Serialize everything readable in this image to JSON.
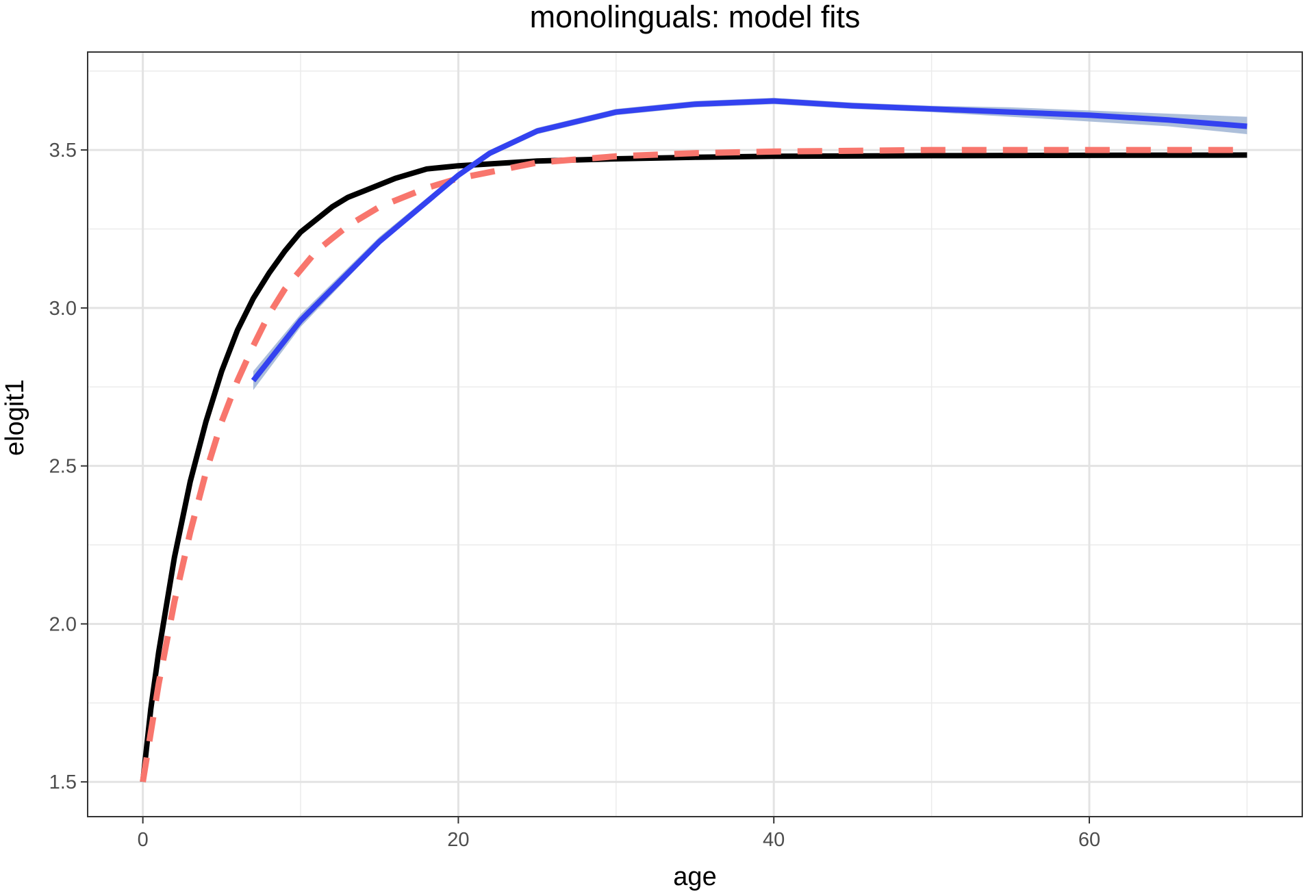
{
  "chart_data": {
    "type": "line",
    "title": "monolinguals: model fits",
    "xlabel": "age",
    "ylabel": "elogit1",
    "xlim": [
      -3.5,
      73.5
    ],
    "ylim": [
      1.39,
      3.81
    ],
    "x_ticks": [
      0,
      20,
      40,
      60
    ],
    "x_tick_labels": [
      "0",
      "20",
      "40",
      "60"
    ],
    "x_minor_ticks": [
      10,
      30,
      50,
      70
    ],
    "y_ticks": [
      1.5,
      2.0,
      2.5,
      3.0,
      3.5
    ],
    "y_tick_labels": [
      "1.5",
      "2.0",
      "2.5",
      "3.0",
      "3.5"
    ],
    "y_minor_ticks": [
      1.75,
      2.25,
      2.75,
      3.25,
      3.75
    ],
    "grid": true,
    "legend": "none",
    "series": [
      {
        "style": "solid",
        "color": "#000000",
        "x": [
          0,
          0.5,
          1,
          2,
          3,
          4,
          5,
          6,
          7,
          8,
          9,
          10,
          11,
          12,
          13,
          14,
          15,
          16,
          17,
          18,
          19,
          20,
          25,
          30,
          35,
          40,
          50,
          60,
          70
        ],
        "y": [
          1.5,
          1.73,
          1.91,
          2.21,
          2.45,
          2.64,
          2.8,
          2.93,
          3.03,
          3.11,
          3.18,
          3.24,
          3.28,
          3.32,
          3.35,
          3.37,
          3.39,
          3.41,
          3.425,
          3.44,
          3.445,
          3.45,
          3.465,
          3.472,
          3.477,
          3.48,
          3.482,
          3.483,
          3.484
        ]
      },
      {
        "style": "dashed",
        "color": "#f8766d",
        "x": [
          0,
          1,
          2,
          3,
          4,
          5,
          6,
          7,
          8,
          9,
          10,
          11,
          12,
          13,
          14,
          15,
          16,
          17,
          18,
          20,
          22,
          25,
          30,
          35,
          40,
          50,
          60,
          70
        ],
        "y": [
          1.5,
          1.81,
          2.07,
          2.29,
          2.48,
          2.64,
          2.77,
          2.88,
          2.98,
          3.06,
          3.12,
          3.18,
          3.22,
          3.26,
          3.29,
          3.32,
          3.34,
          3.36,
          3.38,
          3.41,
          3.43,
          3.46,
          3.48,
          3.49,
          3.495,
          3.5,
          3.5,
          3.5
        ]
      },
      {
        "style": "smooth",
        "color": "#3342f0",
        "band_color": "#9fb4d4",
        "x": [
          7,
          10,
          15,
          20,
          22,
          25,
          30,
          35,
          40,
          45,
          50,
          55,
          60,
          65,
          70
        ],
        "y": [
          2.77,
          2.96,
          3.21,
          3.42,
          3.49,
          3.56,
          3.62,
          3.645,
          3.655,
          3.64,
          3.63,
          3.62,
          3.61,
          3.595,
          3.575
        ],
        "lower": [
          2.74,
          2.94,
          3.2,
          3.41,
          3.48,
          3.55,
          3.61,
          3.635,
          3.645,
          3.63,
          3.62,
          3.605,
          3.59,
          3.575,
          3.55
        ],
        "upper": [
          2.8,
          2.98,
          3.225,
          3.43,
          3.5,
          3.57,
          3.63,
          3.655,
          3.665,
          3.65,
          3.64,
          3.635,
          3.625,
          3.615,
          3.605
        ]
      }
    ]
  }
}
